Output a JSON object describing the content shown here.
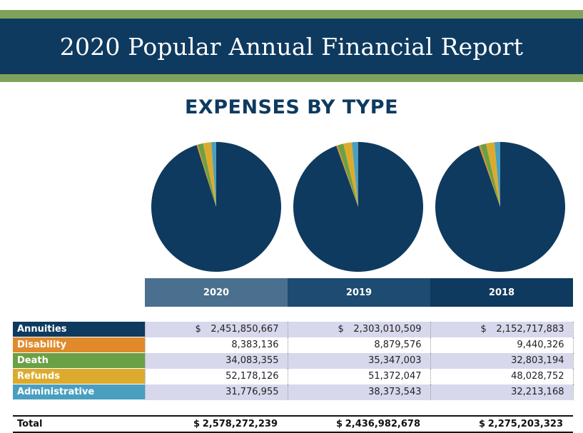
{
  "header": {
    "title": "2020 Popular Annual Financial Report",
    "subtitle": "EXPENSES BY TYPE"
  },
  "colors": {
    "band_green": "#7fa25a",
    "navy": "#0e3a5f",
    "Annuities": "#0e3a5f",
    "Disability": "#e08a2c",
    "Death": "#6aa046",
    "Refunds": "#dcab2e",
    "Administrative": "#4a9fc0"
  },
  "chart_data": {
    "type": "pie",
    "categories": [
      "Annuities",
      "Disability",
      "Death",
      "Refunds",
      "Administrative"
    ],
    "series": [
      {
        "name": "2020",
        "values": [
          2451850667,
          8383136,
          34083355,
          52178126,
          31776955
        ]
      },
      {
        "name": "2019",
        "values": [
          2303010509,
          8879576,
          35347003,
          51372047,
          38373543
        ]
      },
      {
        "name": "2018",
        "values": [
          2152717883,
          9440326,
          32803194,
          48028752,
          32213168
        ]
      }
    ]
  },
  "table": {
    "years": [
      "2020",
      "2019",
      "2018"
    ],
    "currency_symbol": "$",
    "rows": [
      {
        "label": "Annuities",
        "values": [
          "2,451,850,667",
          "2,303,010,509",
          "2,152,717,883"
        ]
      },
      {
        "label": "Disability",
        "values": [
          "8,383,136",
          "8,879,576",
          "9,440,326"
        ]
      },
      {
        "label": "Death",
        "values": [
          "34,083,355",
          "35,347,003",
          "32,803,194"
        ]
      },
      {
        "label": "Refunds",
        "values": [
          "52,178,126",
          "51,372,047",
          "48,028,752"
        ]
      },
      {
        "label": "Administrative",
        "values": [
          "31,776,955",
          "38,373,543",
          "32,213,168"
        ]
      }
    ],
    "total": {
      "label": "Total",
      "values": [
        "2,578,272,239",
        "2,436,982,678",
        "2,275,203,323"
      ]
    }
  }
}
